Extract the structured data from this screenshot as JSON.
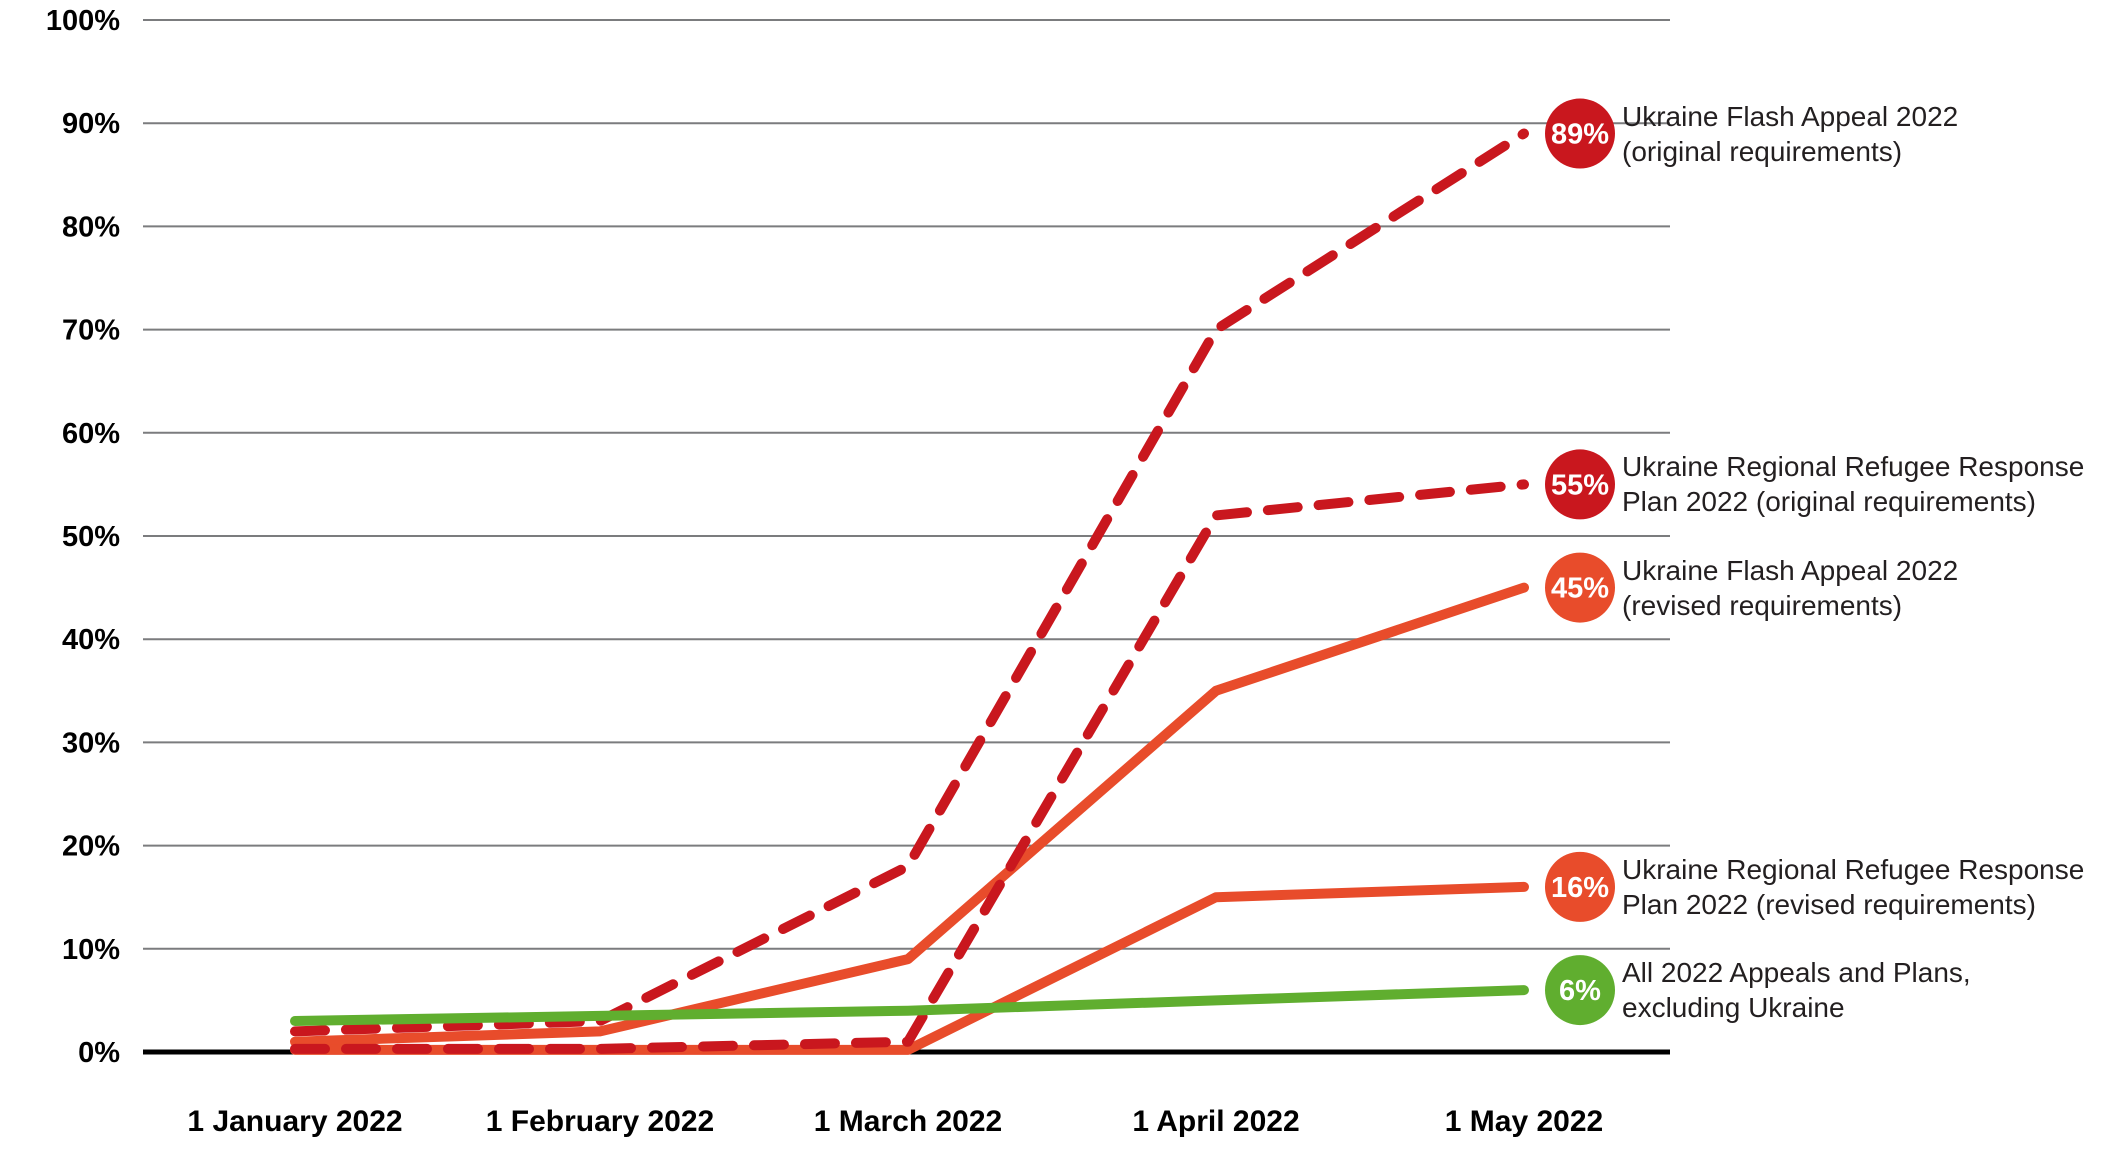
{
  "chart_data": {
    "type": "line",
    "title": "",
    "xlabel": "",
    "ylabel": "",
    "ylim": [
      0,
      100
    ],
    "grid": true,
    "legend_position": "right-annotations",
    "y_ticks": [
      "100%",
      "90%",
      "80%",
      "70%",
      "60%",
      "50%",
      "40%",
      "30%",
      "20%",
      "10%",
      "0%"
    ],
    "categories": [
      "1 January 2022",
      "1 February 2022",
      "1 March 2022",
      "1 April 2022",
      "1 May 2022"
    ],
    "series": [
      {
        "name": "Ukraine Flash Appeal 2022 (original requirements)",
        "label_lines": [
          "Ukraine Flash Appeal 2022",
          "(original requirements)"
        ],
        "values": [
          2,
          3,
          18,
          70,
          89
        ],
        "final_label": "89%",
        "color": "#C9171E",
        "dash": true
      },
      {
        "name": "Ukraine Regional Refugee Response Plan 2022 (original requirements)",
        "label_lines": [
          "Ukraine Regional Refugee Response",
          "Plan 2022 (original requirements)"
        ],
        "values": [
          0.3,
          0.3,
          1,
          52,
          55
        ],
        "final_label": "55%",
        "color": "#C9171E",
        "dash": true
      },
      {
        "name": "Ukraine Flash Appeal 2022 (revised requirements)",
        "label_lines": [
          "Ukraine Flash Appeal 2022",
          "(revised requirements)"
        ],
        "values": [
          1,
          2,
          9,
          35,
          45
        ],
        "final_label": "45%",
        "color": "#E84C2B",
        "dash": false
      },
      {
        "name": "Ukraine Regional Refugee Response Plan 2022 (revised requirements)",
        "label_lines": [
          "Ukraine Regional Refugee Response",
          "Plan 2022 (revised requirements)"
        ],
        "values": [
          0.2,
          0.2,
          0.2,
          15,
          16
        ],
        "final_label": "16%",
        "color": "#E84C2B",
        "dash": false
      },
      {
        "name": "All 2022 Appeals and Plans, excluding Ukraine",
        "label_lines": [
          "All 2022 Appeals and Plans,",
          "excluding Ukraine"
        ],
        "values": [
          3,
          3.5,
          4,
          5,
          6
        ],
        "final_label": "6%",
        "color": "#60AE2F",
        "dash": false
      }
    ],
    "colors": {
      "original_requirements": "#C9171E",
      "revised_requirements": "#E84C2B",
      "all_other_appeals": "#60AE2F",
      "gridline": "#7B7C7E",
      "axis": "#000000",
      "label_text": "#231f20"
    }
  }
}
